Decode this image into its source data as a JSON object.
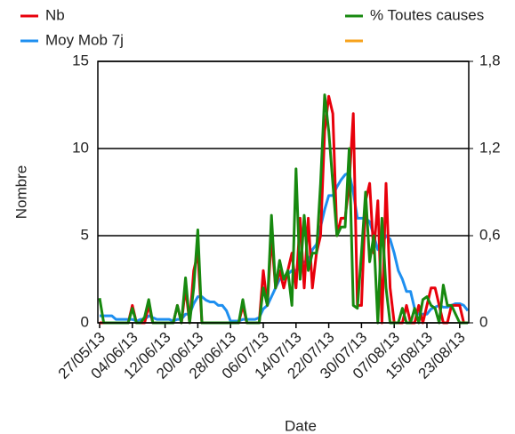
{
  "chart_data": {
    "type": "line",
    "xlabel": "Date",
    "ylabel": "Nombre",
    "x": [
      "27/05/13",
      "28/05/13",
      "29/05/13",
      "30/05/13",
      "31/05/13",
      "01/06/13",
      "02/06/13",
      "03/06/13",
      "04/06/13",
      "05/06/13",
      "06/06/13",
      "07/06/13",
      "08/06/13",
      "09/06/13",
      "10/06/13",
      "11/06/13",
      "12/06/13",
      "13/06/13",
      "14/06/13",
      "15/06/13",
      "16/06/13",
      "17/06/13",
      "18/06/13",
      "19/06/13",
      "20/06/13",
      "21/06/13",
      "22/06/13",
      "23/06/13",
      "24/06/13",
      "25/06/13",
      "26/06/13",
      "27/06/13",
      "28/06/13",
      "29/06/13",
      "30/06/13",
      "01/07/13",
      "02/07/13",
      "03/07/13",
      "04/07/13",
      "05/07/13",
      "06/07/13",
      "07/07/13",
      "08/07/13",
      "09/07/13",
      "10/07/13",
      "11/07/13",
      "12/07/13",
      "13/07/13",
      "14/07/13",
      "15/07/13",
      "16/07/13",
      "17/07/13",
      "18/07/13",
      "19/07/13",
      "20/07/13",
      "21/07/13",
      "22/07/13",
      "23/07/13",
      "24/07/13",
      "25/07/13",
      "26/07/13",
      "27/07/13",
      "28/07/13",
      "29/07/13",
      "30/07/13",
      "31/07/13",
      "01/08/13",
      "02/08/13",
      "03/08/13",
      "04/08/13",
      "05/08/13",
      "06/08/13",
      "07/08/13",
      "08/08/13",
      "09/08/13",
      "10/08/13",
      "11/08/13",
      "12/08/13",
      "13/08/13",
      "14/08/13",
      "15/08/13",
      "16/08/13",
      "17/08/13",
      "18/08/13",
      "19/08/13",
      "20/08/13",
      "21/08/13",
      "22/08/13",
      "23/08/13",
      "24/08/13",
      "25/08/13"
    ],
    "xticks": [
      "27/05/13",
      "04/06/13",
      "12/06/13",
      "20/06/13",
      "28/06/13",
      "06/07/13",
      "14/07/13",
      "22/07/13",
      "30/07/13",
      "07/08/13",
      "15/08/13",
      "23/08/13"
    ],
    "ylim": [
      0,
      15
    ],
    "yticks": [
      0,
      5,
      10,
      15
    ],
    "y2lim": [
      0,
      1.8
    ],
    "y2ticks": [
      0,
      {
        "value": 0.6,
        "label": "0,6"
      },
      {
        "value": 1.2,
        "label": "1,2"
      },
      {
        "value": 1.8,
        "label": "1,8"
      }
    ],
    "grid": true,
    "series": [
      {
        "name": "Nb",
        "color": "#e8000b",
        "values": [
          0,
          0,
          0,
          0,
          0,
          0,
          0,
          0,
          1,
          0,
          0,
          0,
          1,
          0,
          0,
          0,
          0,
          0,
          0,
          1,
          0,
          2,
          0,
          3,
          4,
          0,
          0,
          0,
          0,
          0,
          0,
          0,
          0,
          0,
          0,
          1,
          0,
          0,
          0,
          0,
          3,
          1,
          5,
          2,
          3,
          2,
          3,
          4,
          2,
          6,
          2,
          6,
          2,
          4,
          5,
          11,
          13,
          12,
          5,
          6,
          6,
          8,
          12,
          1,
          1,
          7,
          8,
          4,
          7,
          0,
          8,
          2,
          0,
          0,
          0,
          1,
          0,
          0,
          1,
          0,
          1,
          2,
          2,
          1,
          0,
          0,
          1,
          1,
          1,
          0,
          0
        ]
      },
      {
        "name": "Moy Mob 7j",
        "color": "#1e8ff0",
        "values": [
          0.4,
          0.4,
          0.4,
          0.4,
          0.2,
          0.2,
          0.2,
          0.2,
          0.2,
          0.1,
          0.2,
          0.2,
          0.4,
          0.3,
          0.2,
          0.2,
          0.2,
          0.2,
          0.1,
          0.2,
          0.2,
          0.5,
          0.5,
          1.1,
          1.5,
          1.5,
          1.3,
          1.2,
          1.2,
          1.0,
          1.0,
          0.7,
          0.1,
          0.1,
          0.1,
          0.2,
          0.2,
          0.2,
          0.2,
          0.3,
          0.8,
          1,
          1.5,
          2,
          2.5,
          2.6,
          2.8,
          3,
          3,
          3.3,
          3.5,
          3.5,
          4.2,
          4.5,
          5.5,
          6.5,
          7.3,
          7.3,
          7.8,
          8.2,
          8.5,
          8.6,
          7.5,
          6,
          6,
          6,
          5.8,
          5,
          4.2,
          4.5,
          5,
          4.8,
          4,
          3,
          2.5,
          1.8,
          1.8,
          0.8,
          0.5,
          0.5,
          0.5,
          0.8,
          0.9,
          1,
          0.9,
          0.9,
          1,
          1.1,
          1.1,
          1,
          0.7
        ]
      },
      {
        "name": "% Toutes causes",
        "color": "#17890f",
        "axis": "y2",
        "values": [
          0.17,
          0,
          0,
          0,
          0,
          0,
          0,
          0,
          0.1,
          0,
          0,
          0.04,
          0.16,
          0,
          0,
          0,
          0,
          0,
          0,
          0.12,
          0,
          0.31,
          0,
          0.24,
          0.64,
          0,
          0,
          0,
          0,
          0,
          0,
          0,
          0,
          0,
          0,
          0.16,
          0,
          0,
          0,
          0,
          0.24,
          0.12,
          0.74,
          0.24,
          0.43,
          0.3,
          0.36,
          0.12,
          1.06,
          0.3,
          0.74,
          0.36,
          0.48,
          0.48,
          0.96,
          1.57,
          1.32,
          0.96,
          0.6,
          0.66,
          0.66,
          1.2,
          0.12,
          0.1,
          0.48,
          0.9,
          0.42,
          0.6,
          0,
          0.72,
          0.24,
          0,
          0,
          0,
          0.1,
          0,
          0,
          0.1,
          0,
          0.16,
          0.18,
          0.12,
          0.1,
          0,
          0.26,
          0.12,
          0.12,
          0.06,
          0,
          0,
          0
        ]
      }
    ]
  }
}
